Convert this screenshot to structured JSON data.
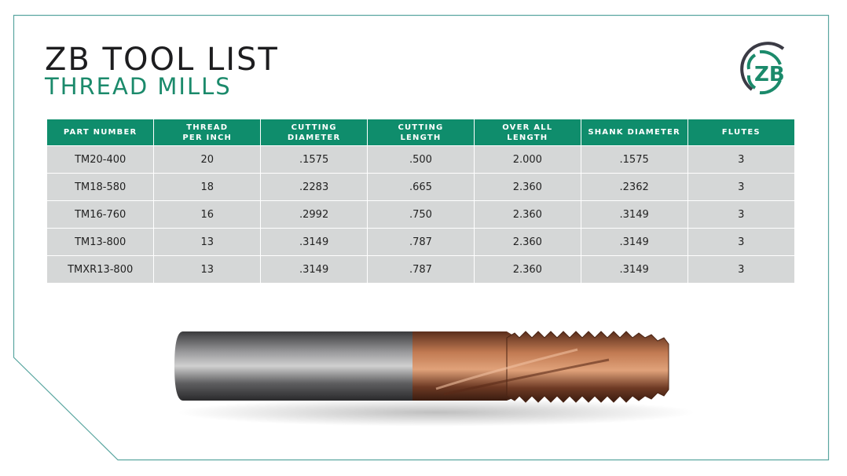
{
  "header": {
    "title": "ZB TOOL LIST",
    "subtitle": "THREAD MILLS"
  },
  "logo": {
    "text": "ZB",
    "colors": {
      "green": "#1b8a6b",
      "dark": "#3b3b45"
    }
  },
  "colors": {
    "accent": "#0f8d6c",
    "row_bg": "#d5d7d7",
    "frame": "#5aa6a0"
  },
  "table": {
    "columns": [
      [
        "PART NUMBER"
      ],
      [
        "THREAD",
        "PER INCH"
      ],
      [
        "CUTTING",
        "DIAMETER"
      ],
      [
        "CUTTING",
        "LENGTH"
      ],
      [
        "OVER ALL",
        "LENGTH"
      ],
      [
        "SHANK DIAMETER"
      ],
      [
        "FLUTES"
      ]
    ],
    "rows": [
      [
        "TM20-400",
        "20",
        ".1575",
        ".500",
        "2.000",
        ".1575",
        "3"
      ],
      [
        "TM18-580",
        "18",
        ".2283",
        ".665",
        "2.360",
        ".2362",
        "3"
      ],
      [
        "TM16-760",
        "16",
        ".2992",
        ".750",
        "2.360",
        ".3149",
        "3"
      ],
      [
        "TM13-800",
        "13",
        ".3149",
        ".787",
        "2.360",
        ".3149",
        "3"
      ],
      [
        "TMXR13-800",
        "13",
        ".3149",
        ".787",
        "2.360",
        ".3149",
        "3"
      ]
    ]
  },
  "image": {
    "subject": "thread-mill-tool"
  }
}
